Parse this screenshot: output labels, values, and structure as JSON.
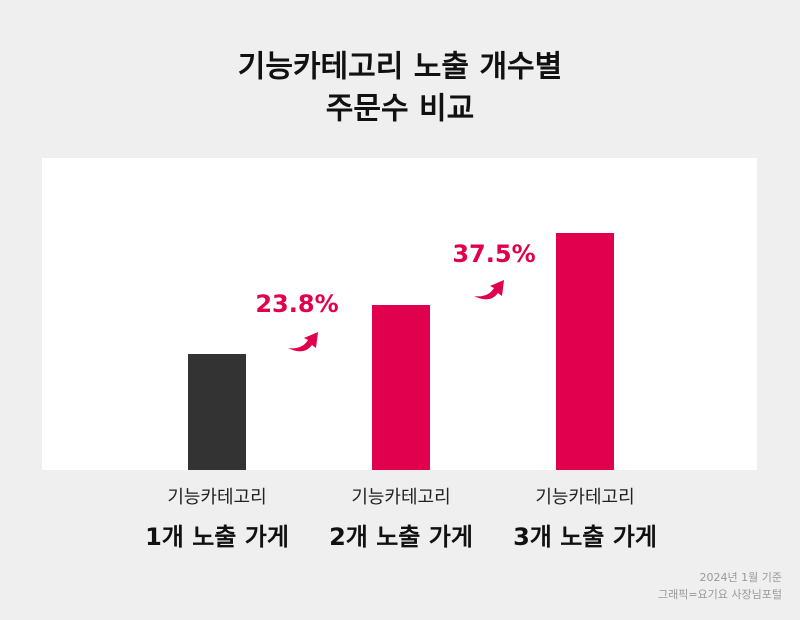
{
  "chart_data": {
    "type": "bar",
    "title_lines": [
      "기능카테고리 노출 개수별",
      "주문수 비교"
    ],
    "category_sublabels": [
      "기능카테고리",
      "기능카테고리",
      "기능카테고리"
    ],
    "categories": [
      "1개 노출 가게",
      "2개 노출 가게",
      "3개 노출 가게"
    ],
    "values": [
      116,
      165,
      237
    ],
    "colors": [
      "#333333",
      "#e0004d",
      "#e0004d"
    ],
    "ylim": [
      0,
      312
    ],
    "growth": {
      "values": [
        23.8,
        37.5
      ],
      "value_labels": [
        "23.8%",
        "37.5%"
      ],
      "color": "#e0004d"
    },
    "footnotes": [
      "2024년 1월 기준",
      "그래픽=요기요 사장님포털"
    ]
  }
}
